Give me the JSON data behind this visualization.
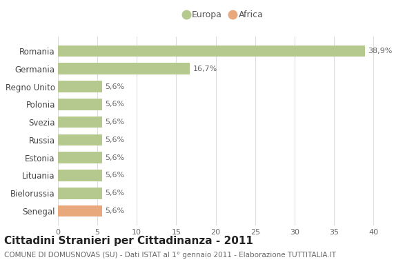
{
  "categories": [
    "Romania",
    "Germania",
    "Regno Unito",
    "Polonia",
    "Svezia",
    "Russia",
    "Estonia",
    "Lituania",
    "Bielorussia",
    "Senegal"
  ],
  "values": [
    38.9,
    16.7,
    5.6,
    5.6,
    5.6,
    5.6,
    5.6,
    5.6,
    5.6,
    5.6
  ],
  "labels": [
    "38,9%",
    "16,7%",
    "5,6%",
    "5,6%",
    "5,6%",
    "5,6%",
    "5,6%",
    "5,6%",
    "5,6%",
    "5,6%"
  ],
  "colors": [
    "#b5c98e",
    "#b5c98e",
    "#b5c98e",
    "#b5c98e",
    "#b5c98e",
    "#b5c98e",
    "#b5c98e",
    "#b5c98e",
    "#b5c98e",
    "#e8a87c"
  ],
  "legend_labels": [
    "Europa",
    "Africa"
  ],
  "legend_colors": [
    "#b5c98e",
    "#e8a87c"
  ],
  "xlim": [
    0,
    42
  ],
  "xticks": [
    0,
    5,
    10,
    15,
    20,
    25,
    30,
    35,
    40
  ],
  "title": "Cittadini Stranieri per Cittadinanza - 2011",
  "subtitle": "COMUNE DI DOMUSNOVAS (SU) - Dati ISTAT al 1° gennaio 2011 - Elaborazione TUTTITALIA.IT",
  "background_color": "#ffffff",
  "grid_color": "#dddddd",
  "label_fontsize": 8,
  "title_fontsize": 11,
  "subtitle_fontsize": 7.5,
  "ytick_fontsize": 8.5,
  "xtick_fontsize": 8
}
